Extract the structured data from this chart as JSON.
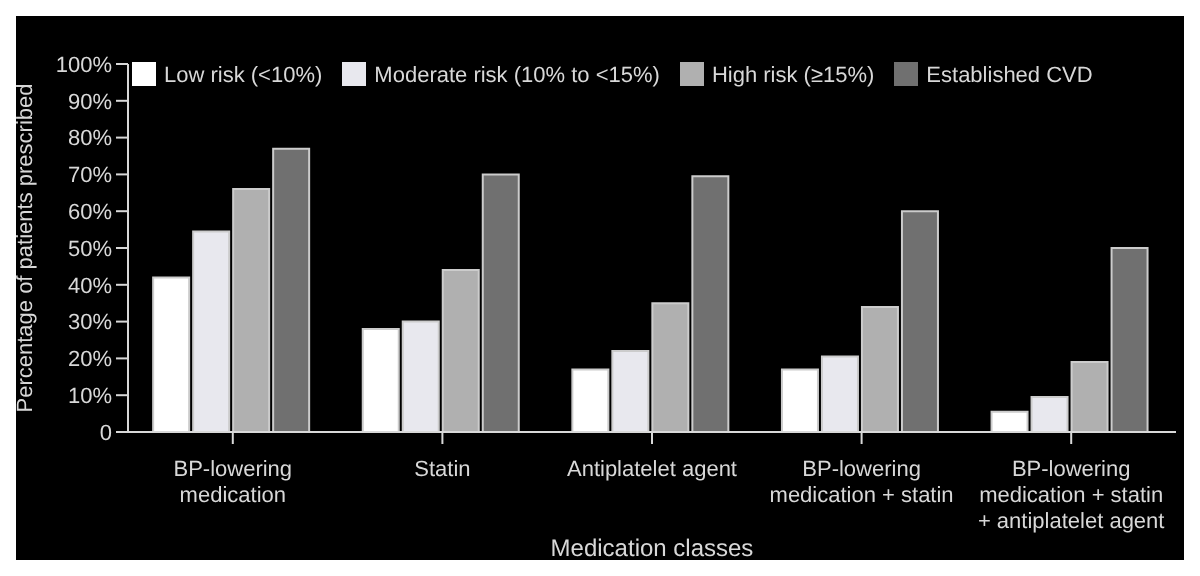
{
  "chart_data": {
    "type": "bar",
    "xlabel": "Medication classes",
    "ylabel": "Percentage of patients prescribed",
    "categories": [
      "BP-lowering medication",
      "Statin",
      "Antiplatelet agent",
      "BP-lowering medication + statin",
      "BP-lowering medication + statin + antiplatelet agent"
    ],
    "series": [
      {
        "name": "Low risk (<10%)",
        "color": "#ffffff",
        "values": [
          42,
          28,
          17,
          17,
          5.5
        ]
      },
      {
        "name": "Moderate risk (10% to <15%)",
        "color": "#e8e8ee",
        "values": [
          54.5,
          30,
          22,
          20.5,
          9.5
        ]
      },
      {
        "name": "High risk (≥15%)",
        "color": "#b0b0b0",
        "values": [
          66,
          44,
          35,
          34,
          19
        ]
      },
      {
        "name": "Established CVD",
        "color": "#707070",
        "values": [
          77,
          70,
          69.5,
          60,
          50
        ]
      }
    ],
    "ylim": [
      0,
      100
    ],
    "yticks": [
      {
        "value": 0,
        "label": "0"
      },
      {
        "value": 10,
        "label": "10%"
      },
      {
        "value": 20,
        "label": "20%"
      },
      {
        "value": 30,
        "label": "30%"
      },
      {
        "value": 40,
        "label": "40%"
      },
      {
        "value": 50,
        "label": "50%"
      },
      {
        "value": 60,
        "label": "60%"
      },
      {
        "value": 70,
        "label": "70%"
      },
      {
        "value": 80,
        "label": "80%"
      },
      {
        "value": 90,
        "label": "90%"
      },
      {
        "value": 100,
        "label": "100%"
      }
    ],
    "grid": false,
    "legend": "top left"
  }
}
